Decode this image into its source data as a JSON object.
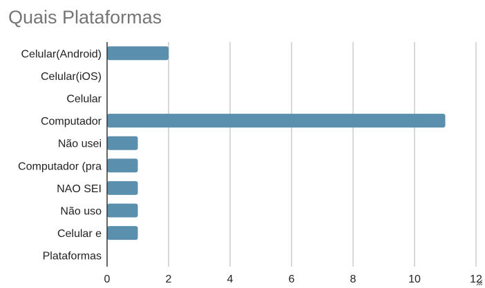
{
  "chart_data": {
    "type": "bar",
    "orientation": "horizontal",
    "title": "Quais Plataformas",
    "categories": [
      "Celular(Android)",
      "Celular(iOS)",
      "Celular",
      "Computador",
      "Não usei",
      "Computador (pra",
      "NAO SEI",
      "Não uso",
      "Celular e",
      "Plataformas"
    ],
    "values": [
      2,
      0,
      0,
      11,
      1,
      1,
      1,
      1,
      1,
      0
    ],
    "xlim": [
      0,
      12
    ],
    "xticks": [
      0,
      2,
      4,
      6,
      8,
      10,
      12
    ],
    "grid": true,
    "bar_color": "#5a90ad",
    "grid_color": "#cccccc",
    "axis_color": "#333333"
  }
}
